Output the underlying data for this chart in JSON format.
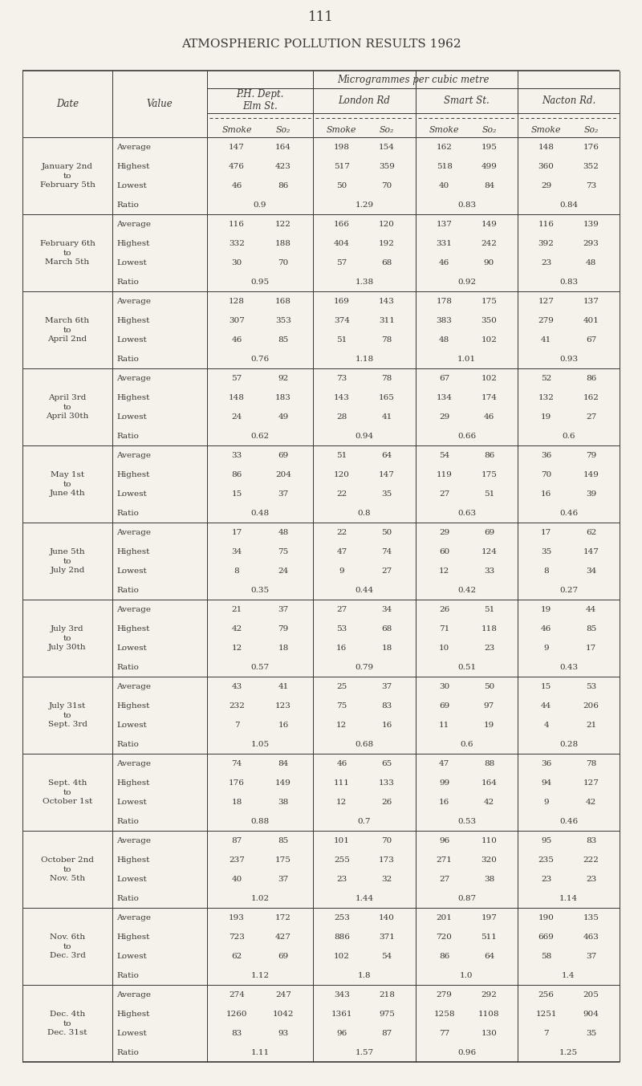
{
  "page_number": "111",
  "title": "ATMOSPHERIC POLLUTION RESULTS 1962",
  "subtitle": "Microgrammes per cubic metre",
  "bg_color": "#f5f2eb",
  "text_color": "#3a3530",
  "rows": [
    {
      "date": "January 2nd\nto\nFebruary 5th",
      "values": [
        [
          "Average",
          "147",
          "164",
          "198",
          "154",
          "162",
          "195",
          "148",
          "176"
        ],
        [
          "Highest",
          "476",
          "423",
          "517",
          "359",
          "518",
          "499",
          "360",
          "352"
        ],
        [
          "Lowest",
          "46",
          "86",
          "50",
          "70",
          "40",
          "84",
          "29",
          "73"
        ],
        [
          "Ratio",
          "0.9",
          "",
          "1.29",
          "",
          "0.83",
          "",
          "0.84",
          ""
        ]
      ]
    },
    {
      "date": "February 6th\nto\nMarch 5th",
      "values": [
        [
          "Average",
          "116",
          "122",
          "166",
          "120",
          "137",
          "149",
          "116",
          "139"
        ],
        [
          "Highest",
          "332",
          "188",
          "404",
          "192",
          "331",
          "242",
          "392",
          "293"
        ],
        [
          "Lowest",
          "30",
          "70",
          "57",
          "68",
          "46",
          "90",
          "23",
          "48"
        ],
        [
          "Ratio",
          "0.95",
          "",
          "1.38",
          "",
          "0.92",
          "",
          "0.83",
          ""
        ]
      ]
    },
    {
      "date": "March 6th\nto\nApril 2nd",
      "values": [
        [
          "Average",
          "128",
          "168",
          "169",
          "143",
          "178",
          "175",
          "127",
          "137"
        ],
        [
          "Highest",
          "307",
          "353",
          "374",
          "311",
          "383",
          "350",
          "279",
          "401"
        ],
        [
          "Lowest",
          "46",
          "85",
          "51",
          "78",
          "48",
          "102",
          "41",
          "67"
        ],
        [
          "Ratio",
          "0.76",
          "",
          "1.18",
          "",
          "1.01",
          "",
          "0.93",
          ""
        ]
      ]
    },
    {
      "date": "April 3rd\nto\nApril 30th",
      "values": [
        [
          "Average",
          "57",
          "92",
          "73",
          "78",
          "67",
          "102",
          "52",
          "86"
        ],
        [
          "Highest",
          "148",
          "183",
          "143",
          "165",
          "134",
          "174",
          "132",
          "162"
        ],
        [
          "Lowest",
          "24",
          "49",
          "28",
          "41",
          "29",
          "46",
          "19",
          "27"
        ],
        [
          "Ratio",
          "0.62",
          "",
          "0.94",
          "",
          "0.66",
          "",
          "0.6",
          ""
        ]
      ]
    },
    {
      "date": "May 1st\nto\nJune 4th",
      "values": [
        [
          "Average",
          "33",
          "69",
          "51",
          "64",
          "54",
          "86",
          "36",
          "79"
        ],
        [
          "Highest",
          "86",
          "204",
          "120",
          "147",
          "119",
          "175",
          "70",
          "149"
        ],
        [
          "Lowest",
          "15",
          "37",
          "22",
          "35",
          "27",
          "51",
          "16",
          "39"
        ],
        [
          "Ratio",
          "0.48",
          "",
          "0.8",
          "",
          "0.63",
          "",
          "0.46",
          ""
        ]
      ]
    },
    {
      "date": "June 5th\nto\nJuly 2nd",
      "values": [
        [
          "Average",
          "17",
          "48",
          "22",
          "50",
          "29",
          "69",
          "17",
          "62"
        ],
        [
          "Highest",
          "34",
          "75",
          "47",
          "74",
          "60",
          "124",
          "35",
          "147"
        ],
        [
          "Lowest",
          "8",
          "24",
          "9",
          "27",
          "12",
          "33",
          "8",
          "34"
        ],
        [
          "Ratio",
          "0.35",
          "",
          "0.44",
          "",
          "0.42",
          "",
          "0.27",
          ""
        ]
      ]
    },
    {
      "date": "July 3rd\nto\nJuly 30th",
      "values": [
        [
          "Average",
          "21",
          "37",
          "27",
          "34",
          "26",
          "51",
          "19",
          "44"
        ],
        [
          "Highest",
          "42",
          "79",
          "53",
          "68",
          "71",
          "118",
          "46",
          "85"
        ],
        [
          "Lowest",
          "12",
          "18",
          "16",
          "18",
          "10",
          "23",
          "9",
          "17"
        ],
        [
          "Ratio",
          "0.57",
          "",
          "0.79",
          "",
          "0.51",
          "",
          "0.43",
          ""
        ]
      ]
    },
    {
      "date": "July 31st\nto\nSept. 3rd",
      "values": [
        [
          "Average",
          "43",
          "41",
          "25",
          "37",
          "30",
          "50",
          "15",
          "53"
        ],
        [
          "Highest",
          "232",
          "123",
          "75",
          "83",
          "69",
          "97",
          "44",
          "206"
        ],
        [
          "Lowest",
          "7",
          "16",
          "12",
          "16",
          "11",
          "19",
          "4",
          "21"
        ],
        [
          "Ratio",
          "1.05",
          "",
          "0.68",
          "",
          "0.6",
          "",
          "0.28",
          ""
        ]
      ]
    },
    {
      "date": "Sept. 4th\nto\nOctober 1st",
      "values": [
        [
          "Average",
          "74",
          "84",
          "46",
          "65",
          "47",
          "88",
          "36",
          "78"
        ],
        [
          "Highest",
          "176",
          "149",
          "111",
          "133",
          "99",
          "164",
          "94",
          "127"
        ],
        [
          "Lowest",
          "18",
          "38",
          "12",
          "26",
          "16",
          "42",
          "9",
          "42"
        ],
        [
          "Ratio",
          "0.88",
          "",
          "0.7",
          "",
          "0.53",
          "",
          "0.46",
          ""
        ]
      ]
    },
    {
      "date": "October 2nd\nto\nNov. 5th",
      "values": [
        [
          "Average",
          "87",
          "85",
          "101",
          "70",
          "96",
          "110",
          "95",
          "83"
        ],
        [
          "Highest",
          "237",
          "175",
          "255",
          "173",
          "271",
          "320",
          "235",
          "222"
        ],
        [
          "Lowest",
          "40",
          "37",
          "23",
          "32",
          "27",
          "38",
          "23",
          "23"
        ],
        [
          "Ratio",
          "1.02",
          "",
          "1.44",
          "",
          "0.87",
          "",
          "1.14",
          ""
        ]
      ]
    },
    {
      "date": "Nov. 6th\nto\nDec. 3rd",
      "values": [
        [
          "Average",
          "193",
          "172",
          "253",
          "140",
          "201",
          "197",
          "190",
          "135"
        ],
        [
          "Highest",
          "723",
          "427",
          "886",
          "371",
          "720",
          "511",
          "669",
          "463"
        ],
        [
          "Lowest",
          "62",
          "69",
          "102",
          "54",
          "86",
          "64",
          "58",
          "37"
        ],
        [
          "Ratio",
          "1.12",
          "",
          "1.8",
          "",
          "1.0",
          "",
          "1.4",
          ""
        ]
      ]
    },
    {
      "date": "Dec. 4th\nto\nDec. 31st",
      "values": [
        [
          "Average",
          "274",
          "247",
          "343",
          "218",
          "279",
          "292",
          "256",
          "205"
        ],
        [
          "Highest",
          "1260",
          "1042",
          "1361",
          "975",
          "1258",
          "1108",
          "1251",
          "904"
        ],
        [
          "Lowest",
          "83",
          "93",
          "96",
          "87",
          "77",
          "130",
          "7",
          "35"
        ],
        [
          "Ratio",
          "1.11",
          "",
          "1.57",
          "",
          "0.96",
          "",
          "1.25",
          ""
        ]
      ]
    }
  ]
}
